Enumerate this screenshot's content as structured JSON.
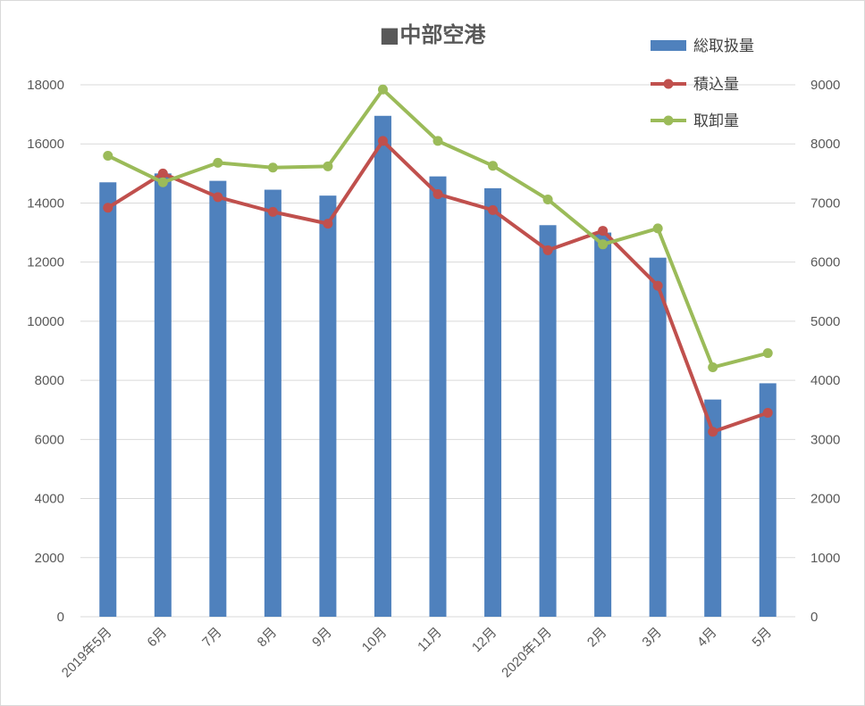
{
  "chart_data": {
    "type": "bar+line",
    "title": "■中部空港",
    "categories": [
      "2019年5月",
      "6月",
      "7月",
      "8月",
      "9月",
      "10月",
      "11月",
      "12月",
      "2020年1月",
      "2月",
      "3月",
      "4月",
      "5月"
    ],
    "series": [
      {
        "name": "総取扱量",
        "type": "bar",
        "axis": "left",
        "color": "#4f81bd",
        "values": [
          14700,
          15000,
          14750,
          14450,
          14250,
          16950,
          14900,
          14500,
          13250,
          13000,
          12150,
          7350,
          7900
        ]
      },
      {
        "name": "積込量",
        "type": "line",
        "axis": "right",
        "color": "#c0504d",
        "values": [
          6920,
          7500,
          7100,
          6850,
          6650,
          8050,
          7150,
          6880,
          6200,
          6530,
          5600,
          3130,
          3450
        ]
      },
      {
        "name": "取卸量",
        "type": "line",
        "axis": "right",
        "color": "#9bbb59",
        "values": [
          7800,
          7350,
          7680,
          7600,
          7620,
          8920,
          8050,
          7630,
          7060,
          6300,
          6570,
          4220,
          4460
        ]
      }
    ],
    "y_left": {
      "min": 0,
      "max": 18000,
      "ticks": [
        "0",
        "2000",
        "4000",
        "6000",
        "8000",
        "10000",
        "12000",
        "14000",
        "16000",
        "18000"
      ]
    },
    "y_right": {
      "min": 0,
      "max": 9000,
      "ticks": [
        "0",
        "1000",
        "2000",
        "3000",
        "4000",
        "5000",
        "6000",
        "7000",
        "8000",
        "9000"
      ]
    },
    "grid": true,
    "legend_position": "top-right"
  }
}
